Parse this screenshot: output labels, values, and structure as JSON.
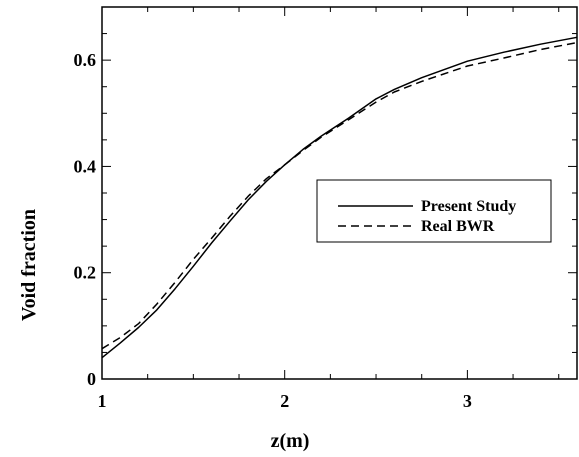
{
  "chart_data": {
    "type": "line",
    "title": "",
    "xlabel": "z(m)",
    "ylabel": "Void fraction",
    "xlim": [
      1,
      3.6
    ],
    "ylim": [
      0,
      0.7
    ],
    "x_ticks": [
      1,
      2,
      3
    ],
    "x_tick_labels": [
      "1",
      "2",
      "3"
    ],
    "y_ticks": [
      0,
      0.2,
      0.4,
      0.6
    ],
    "y_tick_labels": [
      "0",
      "0.2",
      "0.4",
      "0.6"
    ],
    "grid": false,
    "legend_position": "center-right",
    "series": [
      {
        "name": "Present Study",
        "style": "solid",
        "color": "#000000",
        "x": [
          1.0,
          1.1,
          1.2,
          1.3,
          1.4,
          1.5,
          1.6,
          1.7,
          1.8,
          1.9,
          2.0,
          2.1,
          2.2,
          2.35,
          2.5,
          2.6,
          2.75,
          3.0,
          3.2,
          3.4,
          3.6
        ],
        "y": [
          0.04,
          0.068,
          0.097,
          0.13,
          0.17,
          0.212,
          0.256,
          0.297,
          0.337,
          0.372,
          0.403,
          0.432,
          0.457,
          0.491,
          0.527,
          0.545,
          0.567,
          0.598,
          0.615,
          0.63,
          0.643
        ]
      },
      {
        "name": "Real BWR",
        "style": "dashed",
        "color": "#000000",
        "x": [
          1.0,
          1.1,
          1.2,
          1.3,
          1.4,
          1.5,
          1.6,
          1.7,
          1.8,
          1.9,
          2.0,
          2.1,
          2.2,
          2.35,
          2.5,
          2.6,
          2.75,
          3.0,
          3.2,
          3.4,
          3.6
        ],
        "y": [
          0.057,
          0.078,
          0.104,
          0.141,
          0.182,
          0.225,
          0.265,
          0.306,
          0.344,
          0.377,
          0.403,
          0.43,
          0.455,
          0.488,
          0.521,
          0.54,
          0.56,
          0.589,
          0.604,
          0.62,
          0.633
        ]
      }
    ]
  }
}
